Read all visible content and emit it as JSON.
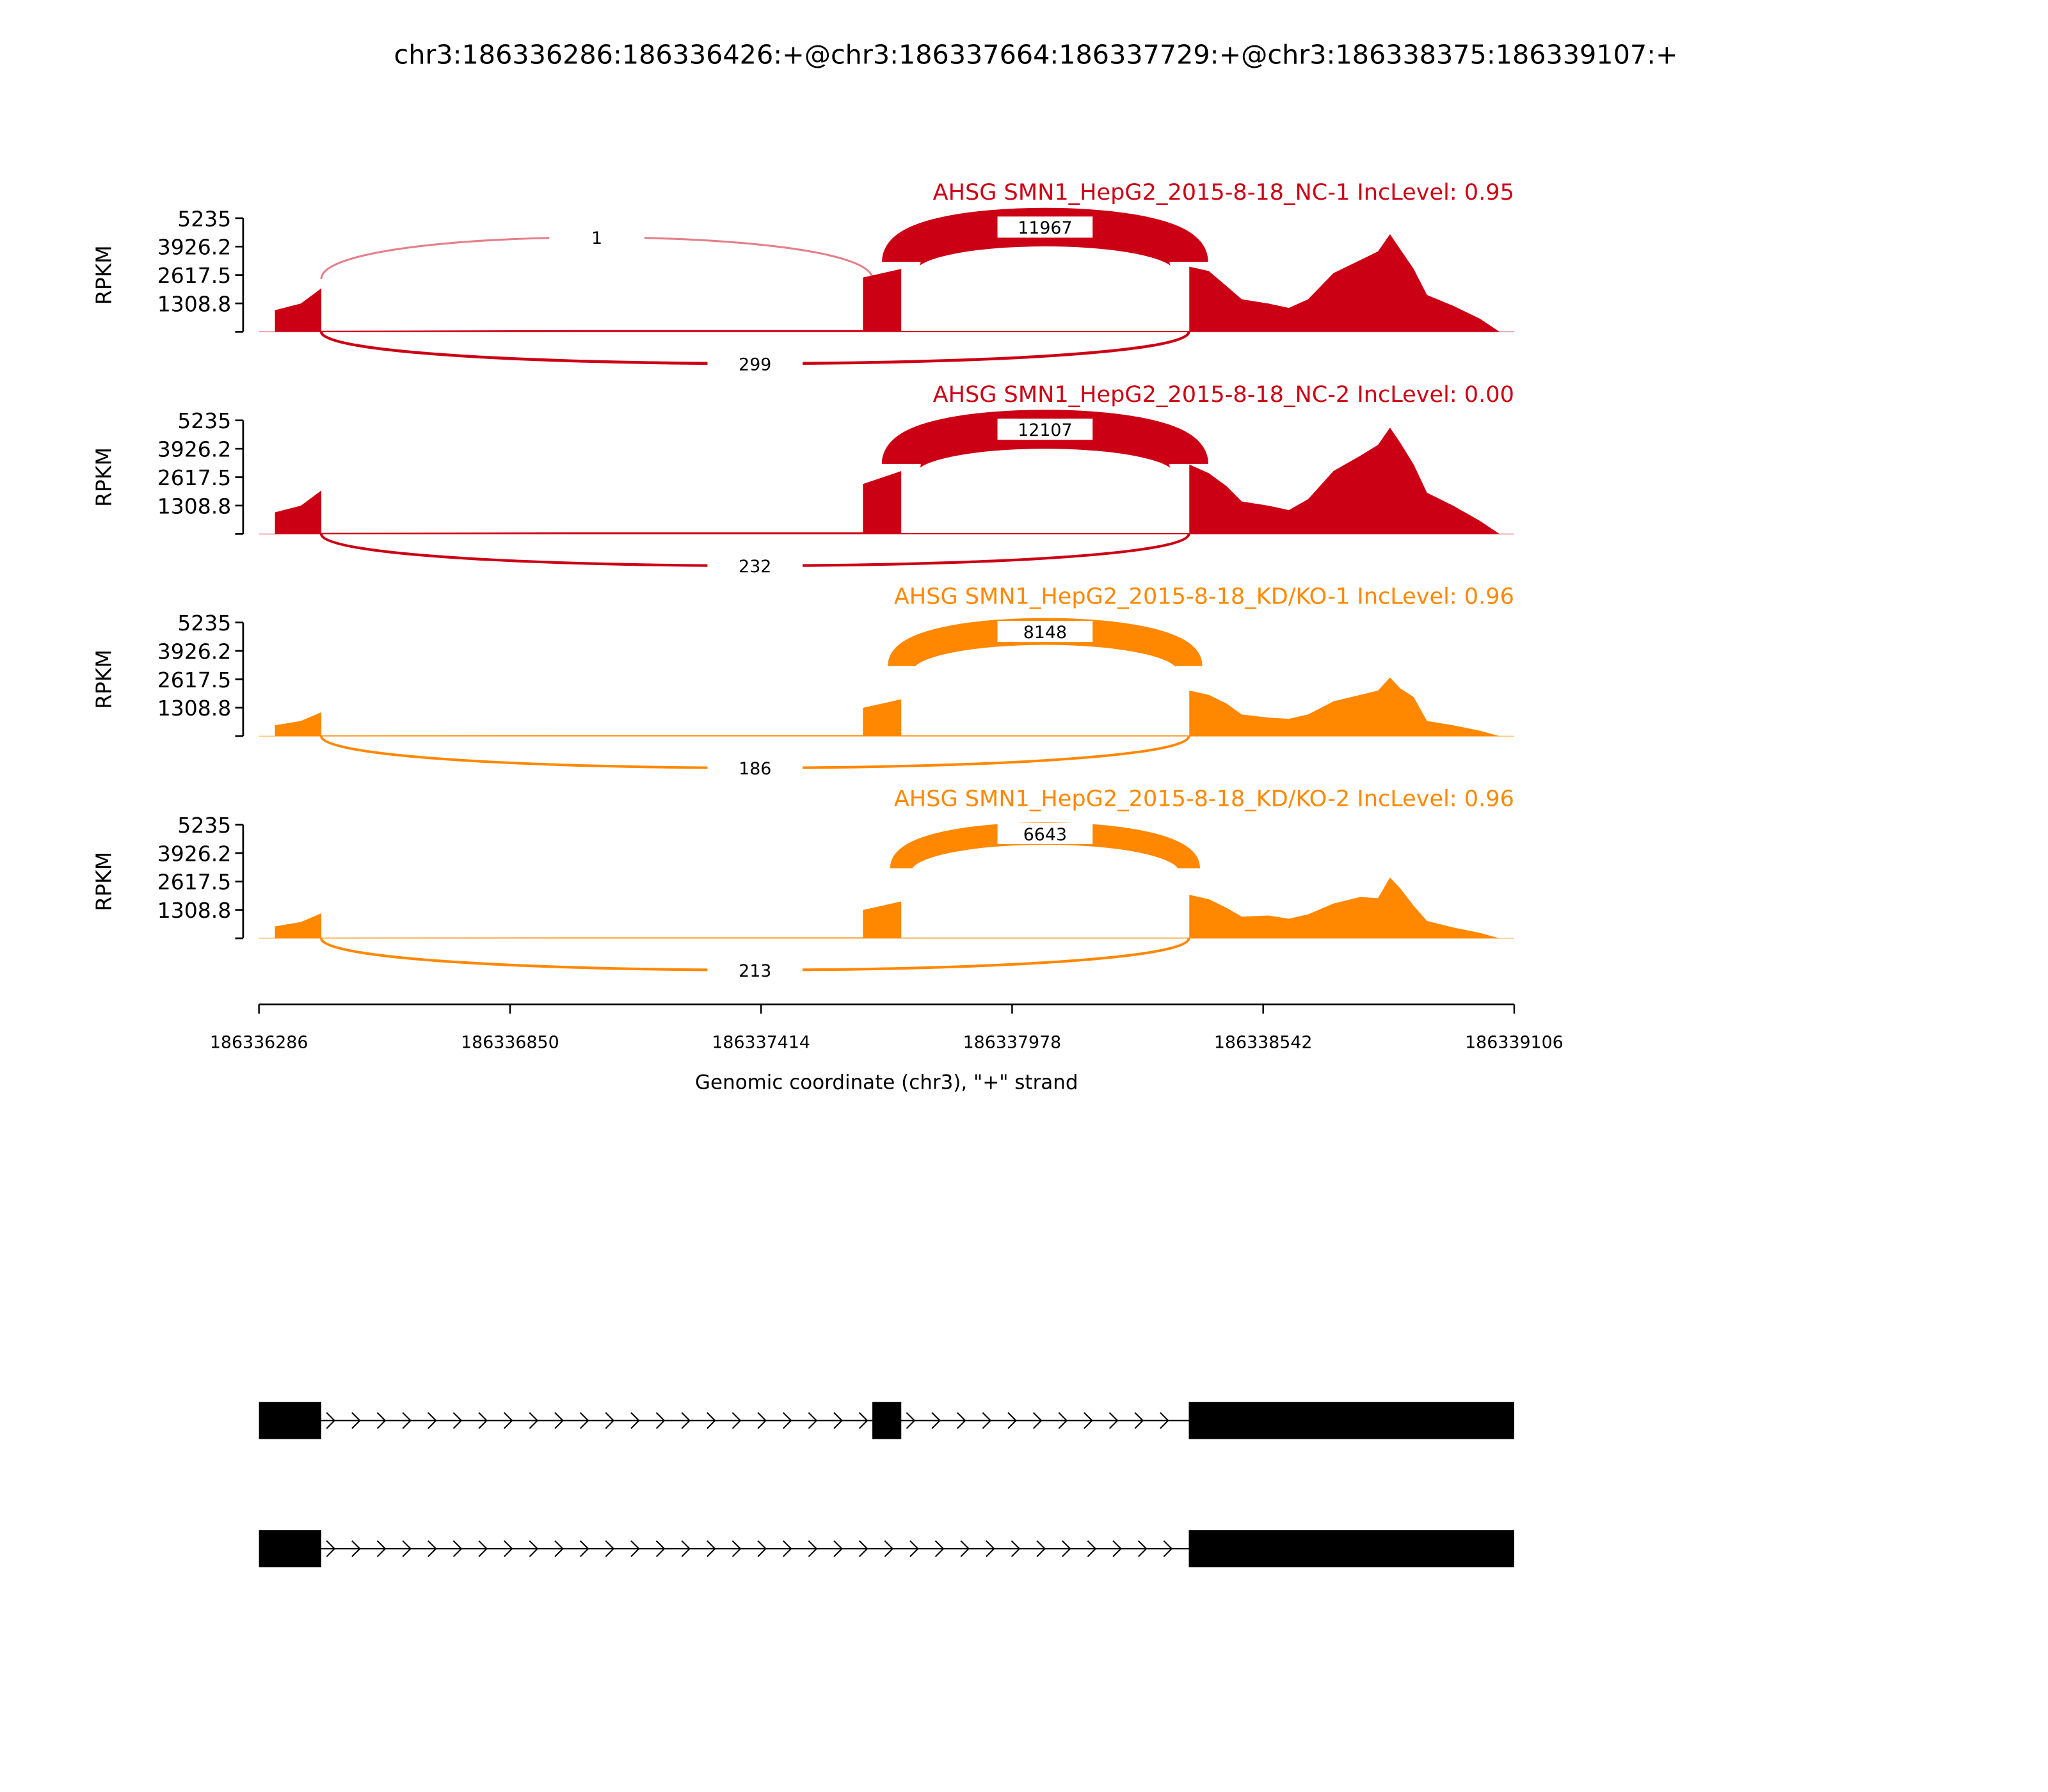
{
  "chart_data": {
    "type": "area",
    "title": "chr3:186336286:186336426:+@chr3:186337664:186337729:+@chr3:186338375:186339107:+",
    "xlabel": "Genomic coordinate (chr3), \"+\" strand",
    "ylabel": "RPKM",
    "xlim": [
      186336286,
      186339106
    ],
    "ylim": [
      0,
      5235
    ],
    "xticks": [
      "186336286",
      "186336850",
      "186337414",
      "186337978",
      "186338542",
      "186339106"
    ],
    "yticks": [
      "1308.8",
      "2617.5",
      "3926.2",
      "5235"
    ],
    "panels": [
      {
        "title": "AHSG SMN1_HepG2_2015-8-18_NC-1 IncLevel: 0.95",
        "color": "#cc0015",
        "coverage": [
          [
            186336322,
            0
          ],
          [
            186336322,
            1000
          ],
          [
            186336380,
            1300
          ],
          [
            186336426,
            2000
          ],
          [
            186336426,
            50
          ],
          [
            186337000,
            80
          ],
          [
            186337643,
            80
          ],
          [
            186337643,
            2500
          ],
          [
            186337729,
            2900
          ],
          [
            186337729,
            40
          ],
          [
            186338376,
            40
          ],
          [
            186338376,
            3000
          ],
          [
            186338420,
            2800
          ],
          [
            186338460,
            2100
          ],
          [
            186338494,
            1500
          ],
          [
            186338554,
            1300
          ],
          [
            186338600,
            1100
          ],
          [
            186338643,
            1500
          ],
          [
            186338700,
            2700
          ],
          [
            186338760,
            3300
          ],
          [
            186338800,
            3700
          ],
          [
            186338827,
            4500
          ],
          [
            186338850,
            3800
          ],
          [
            186338880,
            2900
          ],
          [
            186338910,
            1700
          ],
          [
            186338969,
            1200
          ],
          [
            186339029,
            600
          ],
          [
            186339073,
            0
          ]
        ],
        "junctions": [
          {
            "start": 186336426,
            "end": 186337664,
            "count": "1",
            "side": "top"
          },
          {
            "start": 186337729,
            "end": 186338375,
            "count": "11967",
            "side": "top"
          },
          {
            "start": 186336426,
            "end": 186338375,
            "count": "299",
            "side": "bottom"
          }
        ]
      },
      {
        "title": "AHSG SMN1_HepG2_2015-8-18_NC-2 IncLevel: 0.00",
        "color": "#cc0015",
        "coverage": [
          [
            186336322,
            0
          ],
          [
            186336322,
            1000
          ],
          [
            186336380,
            1300
          ],
          [
            186336426,
            2000
          ],
          [
            186336426,
            50
          ],
          [
            186337000,
            80
          ],
          [
            186337643,
            80
          ],
          [
            186337643,
            2300
          ],
          [
            186337729,
            2900
          ],
          [
            186337729,
            40
          ],
          [
            186338376,
            40
          ],
          [
            186338376,
            3200
          ],
          [
            186338420,
            2800
          ],
          [
            186338460,
            2200
          ],
          [
            186338494,
            1500
          ],
          [
            186338554,
            1300
          ],
          [
            186338600,
            1100
          ],
          [
            186338643,
            1600
          ],
          [
            186338700,
            2900
          ],
          [
            186338760,
            3600
          ],
          [
            186338800,
            4100
          ],
          [
            186338827,
            4900
          ],
          [
            186338850,
            4200
          ],
          [
            186338880,
            3200
          ],
          [
            186338910,
            1900
          ],
          [
            186338969,
            1300
          ],
          [
            186339029,
            600
          ],
          [
            186339073,
            0
          ]
        ],
        "junctions": [
          {
            "start": 186337729,
            "end": 186338375,
            "count": "12107",
            "side": "top"
          },
          {
            "start": 186336426,
            "end": 186338375,
            "count": "232",
            "side": "bottom"
          }
        ]
      },
      {
        "title": "AHSG SMN1_HepG2_2015-8-18_KD/KO-1 IncLevel: 0.96",
        "color": "#ff8800",
        "coverage": [
          [
            186336322,
            0
          ],
          [
            186336322,
            500
          ],
          [
            186336380,
            700
          ],
          [
            186336426,
            1100
          ],
          [
            186336426,
            30
          ],
          [
            186337000,
            40
          ],
          [
            186337643,
            40
          ],
          [
            186337643,
            1300
          ],
          [
            186337729,
            1700
          ],
          [
            186337729,
            30
          ],
          [
            186338376,
            30
          ],
          [
            186338376,
            2100
          ],
          [
            186338420,
            1900
          ],
          [
            186338460,
            1500
          ],
          [
            186338494,
            1000
          ],
          [
            186338554,
            850
          ],
          [
            186338600,
            800
          ],
          [
            186338643,
            1000
          ],
          [
            186338700,
            1600
          ],
          [
            186338760,
            1900
          ],
          [
            186338800,
            2100
          ],
          [
            186338827,
            2700
          ],
          [
            186338850,
            2200
          ],
          [
            186338880,
            1800
          ],
          [
            186338910,
            700
          ],
          [
            186338969,
            500
          ],
          [
            186339029,
            250
          ],
          [
            186339073,
            0
          ]
        ],
        "junctions": [
          {
            "start": 186337729,
            "end": 186338375,
            "count": "8148",
            "side": "top"
          },
          {
            "start": 186336426,
            "end": 186338375,
            "count": "186",
            "side": "bottom"
          }
        ]
      },
      {
        "title": "AHSG SMN1_HepG2_2015-8-18_KD/KO-2 IncLevel: 0.96",
        "color": "#ff8800",
        "coverage": [
          [
            186336322,
            0
          ],
          [
            186336322,
            550
          ],
          [
            186336380,
            750
          ],
          [
            186336426,
            1150
          ],
          [
            186336426,
            30
          ],
          [
            186337000,
            40
          ],
          [
            186337643,
            40
          ],
          [
            186337643,
            1300
          ],
          [
            186337729,
            1700
          ],
          [
            186337729,
            30
          ],
          [
            186338376,
            30
          ],
          [
            186338376,
            2000
          ],
          [
            186338420,
            1800
          ],
          [
            186338460,
            1400
          ],
          [
            186338494,
            1000
          ],
          [
            186338554,
            1050
          ],
          [
            186338600,
            900
          ],
          [
            186338643,
            1100
          ],
          [
            186338700,
            1600
          ],
          [
            186338760,
            1900
          ],
          [
            186338800,
            1850
          ],
          [
            186338827,
            2800
          ],
          [
            186338850,
            2300
          ],
          [
            186338880,
            1500
          ],
          [
            186338910,
            800
          ],
          [
            186338969,
            500
          ],
          [
            186339029,
            250
          ],
          [
            186339073,
            0
          ]
        ],
        "junctions": [
          {
            "start": 186337729,
            "end": 186338375,
            "count": "6643",
            "side": "top"
          },
          {
            "start": 186336426,
            "end": 186338375,
            "count": "213",
            "side": "bottom"
          }
        ]
      }
    ],
    "transcripts": [
      {
        "exons": [
          [
            186336286,
            186336426
          ],
          [
            186337664,
            186337729
          ],
          [
            186338375,
            186339107
          ]
        ]
      },
      {
        "exons": [
          [
            186336286,
            186336426
          ],
          [
            186338375,
            186339107
          ]
        ]
      }
    ]
  }
}
